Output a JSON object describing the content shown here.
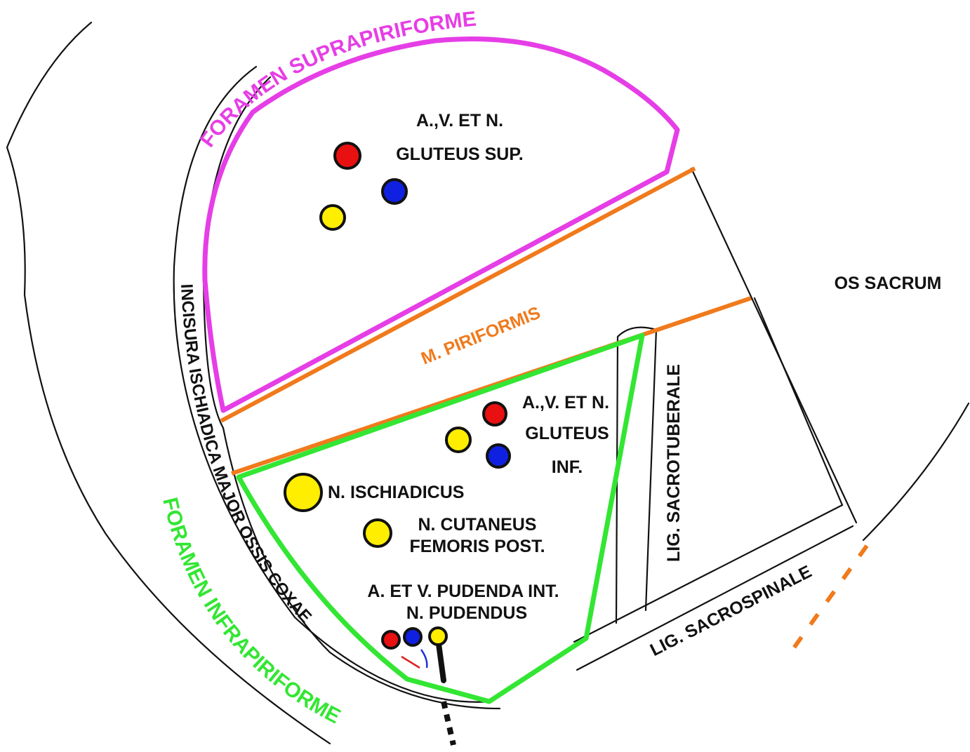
{
  "labels": {
    "foramen_suprapiriforme": "FORAMEN SUPRAPIRIFORME",
    "gluteus_sup": [
      "A.,V. ET N.",
      "GLUTEUS SUP."
    ],
    "os_sacrum": "OS SACRUM",
    "m_piriformis": "M. PIRIFORMIS",
    "incisura": "INCISURA ISCHIADICA MAJOR OSSIS COXAE",
    "lig_sacrotuberale": "LIG. SACROTUBERALE",
    "gluteus_inf": [
      "A.,V. ET N.",
      "GLUTEUS",
      "INF."
    ],
    "n_ischiadicus": "N. ISCHIADICUS",
    "n_cutaneus": [
      "N. CUTANEUS",
      "FEMORIS POST."
    ],
    "pudenda": [
      "A. ET V. PUDENDA INT.",
      "N. PUDENDUS"
    ],
    "lig_sacrospinale": "LIG. SACROSPINALE",
    "foramen_infrapiriforme": "FORAMEN INFRAPIRIFORME"
  }
}
